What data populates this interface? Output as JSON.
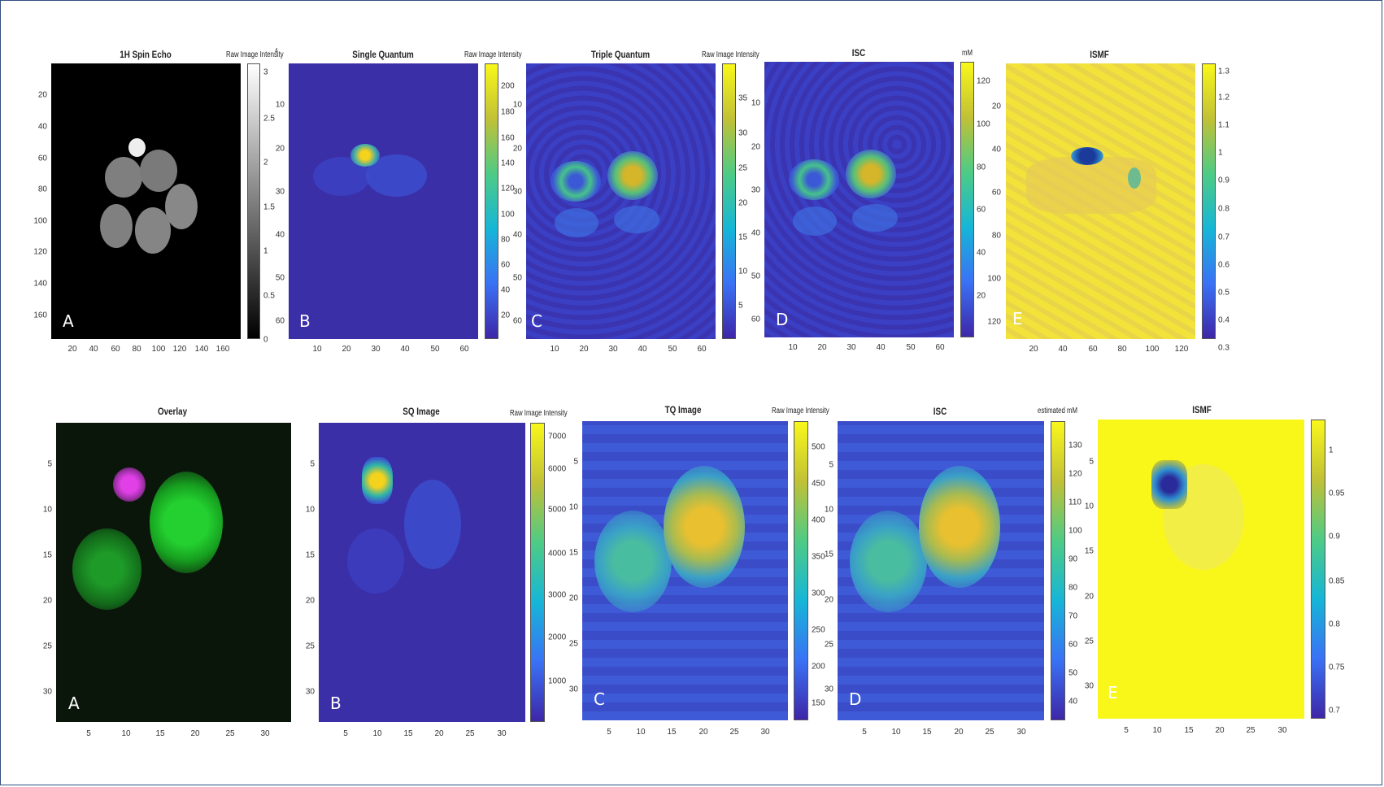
{
  "figure": {
    "row1": {
      "a": {
        "title": "1H Spin Echo",
        "cb_label": "Raw Image Intensity",
        "letter": "A",
        "xticks": [
          "20",
          "40",
          "60",
          "80",
          "100",
          "120",
          "140",
          "160"
        ],
        "yticks": [
          "20",
          "40",
          "60",
          "80",
          "100",
          "120",
          "140",
          "160"
        ],
        "cbticks": [
          "3",
          "2.5",
          "2",
          "1.5",
          "1",
          "0.5",
          "0"
        ],
        "cb_superscript": "4"
      },
      "b": {
        "title": "Single Quantum",
        "cb_label": "Raw Image Intensity",
        "letter": "B",
        "xticks": [
          "10",
          "20",
          "30",
          "40",
          "50",
          "60"
        ],
        "yticks": [
          "10",
          "20",
          "30",
          "40",
          "50",
          "60"
        ],
        "cbticks": [
          "200",
          "180",
          "160",
          "140",
          "120",
          "100",
          "80",
          "60",
          "40",
          "20"
        ]
      },
      "c": {
        "title": "Triple Quantum",
        "cb_label": "Raw Image Intensity",
        "letter": "C",
        "xticks": [
          "10",
          "20",
          "30",
          "40",
          "50",
          "60"
        ],
        "yticks": [
          "10",
          "20",
          "30",
          "40",
          "50",
          "60"
        ],
        "cbticks": [
          "35",
          "30",
          "25",
          "20",
          "15",
          "10",
          "5"
        ]
      },
      "d": {
        "title": "ISC",
        "cb_label": "mM",
        "letter": "D",
        "xticks": [
          "10",
          "20",
          "30",
          "40",
          "50",
          "60"
        ],
        "yticks": [
          "10",
          "20",
          "30",
          "40",
          "50",
          "60"
        ],
        "cbticks": [
          "120",
          "100",
          "80",
          "60",
          "40",
          "20"
        ]
      },
      "e": {
        "title": "ISMF",
        "cb_label": "",
        "letter": "E",
        "xticks": [
          "20",
          "40",
          "60",
          "80",
          "100",
          "120"
        ],
        "yticks": [
          "20",
          "40",
          "60",
          "80",
          "100",
          "120"
        ],
        "cbticks": [
          "1.3",
          "1.2",
          "1.1",
          "1",
          "0.9",
          "0.8",
          "0.7",
          "0.6",
          "0.5",
          "0.4",
          "0.3"
        ]
      }
    },
    "row2": {
      "a": {
        "title": "Overlay",
        "cb_label": "",
        "letter": "A",
        "xticks": [
          "5",
          "10",
          "15",
          "20",
          "25",
          "30"
        ],
        "yticks": [
          "5",
          "10",
          "15",
          "20",
          "25",
          "30"
        ]
      },
      "b": {
        "title": "SQ Image",
        "cb_label": "Raw Image Intensity",
        "letter": "B",
        "xticks": [
          "5",
          "10",
          "15",
          "20",
          "25",
          "30"
        ],
        "yticks": [
          "5",
          "10",
          "15",
          "20",
          "25",
          "30"
        ],
        "cbticks": [
          "7000",
          "6000",
          "5000",
          "4000",
          "3000",
          "2000",
          "1000"
        ]
      },
      "c": {
        "title": "TQ Image",
        "cb_label": "Raw Image Intensity",
        "letter": "C",
        "xticks": [
          "5",
          "10",
          "15",
          "20",
          "25",
          "30"
        ],
        "yticks": [
          "5",
          "10",
          "15",
          "20",
          "25",
          "30"
        ],
        "cbticks": [
          "500",
          "450",
          "400",
          "350",
          "300",
          "250",
          "200",
          "150"
        ]
      },
      "d": {
        "title": "ISC",
        "cb_label": "estimated mM",
        "letter": "D",
        "xticks": [
          "5",
          "10",
          "15",
          "20",
          "25",
          "30"
        ],
        "yticks": [
          "5",
          "10",
          "15",
          "20",
          "25",
          "30"
        ],
        "cbticks": [
          "130",
          "120",
          "110",
          "100",
          "90",
          "80",
          "70",
          "60",
          "50",
          "40"
        ]
      },
      "e": {
        "title": "ISMF",
        "cb_label": "",
        "letter": "E",
        "xticks": [
          "5",
          "10",
          "15",
          "20",
          "25",
          "30"
        ],
        "yticks": [
          "5",
          "10",
          "15",
          "20",
          "25",
          "30"
        ],
        "cbticks": [
          "1",
          "0.95",
          "0.9",
          "0.85",
          "0.8",
          "0.75",
          "0.7"
        ]
      }
    }
  },
  "colors": {
    "parula_bg": "#3b2fa8",
    "parula_yellow": "#f9f71a",
    "gray_bg": "#000000",
    "overlay_green": "#17c428",
    "overlay_magenta": "#e040e6"
  }
}
